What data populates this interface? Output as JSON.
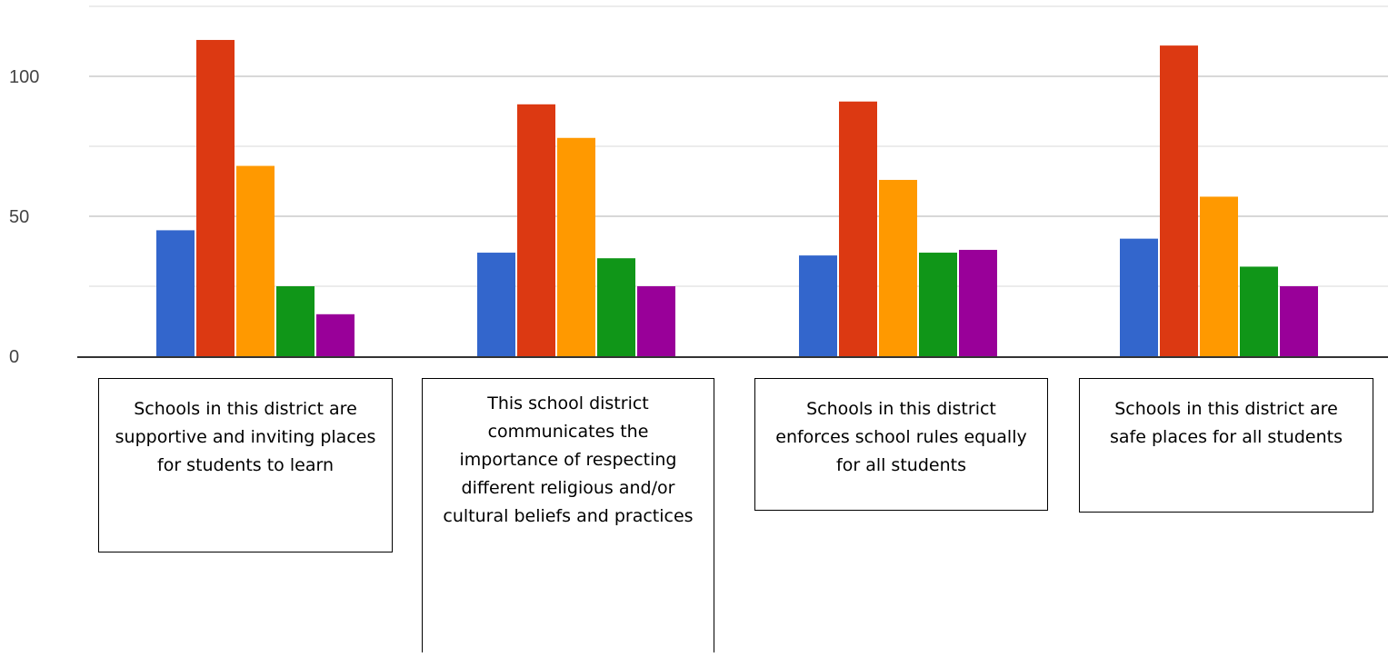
{
  "chart_data": {
    "type": "bar",
    "categories": [
      "Schools in this district are supportive and inviting places for students to learn",
      "This school district communicates the importance of respecting different religious and/or cultural beliefs and practices",
      "Schools in this district enforces school rules equally for all students",
      "Schools in this district are safe places for all students"
    ],
    "series": [
      {
        "values": [
          45,
          37,
          36,
          42
        ],
        "color": "#3366cc"
      },
      {
        "values": [
          113,
          90,
          91,
          111
        ],
        "color": "#dc3912"
      },
      {
        "values": [
          68,
          78,
          63,
          57
        ],
        "color": "#ff9900"
      },
      {
        "values": [
          25,
          35,
          37,
          32
        ],
        "color": "#109618"
      },
      {
        "values": [
          15,
          25,
          38,
          25
        ],
        "color": "#990099"
      }
    ],
    "ylim": [
      0,
      125
    ],
    "y_ticks": [
      "0",
      "50",
      "100"
    ],
    "gridlines_every": 25,
    "grid": true,
    "legend": "none",
    "title": "",
    "xlabel": "",
    "ylabel": ""
  }
}
